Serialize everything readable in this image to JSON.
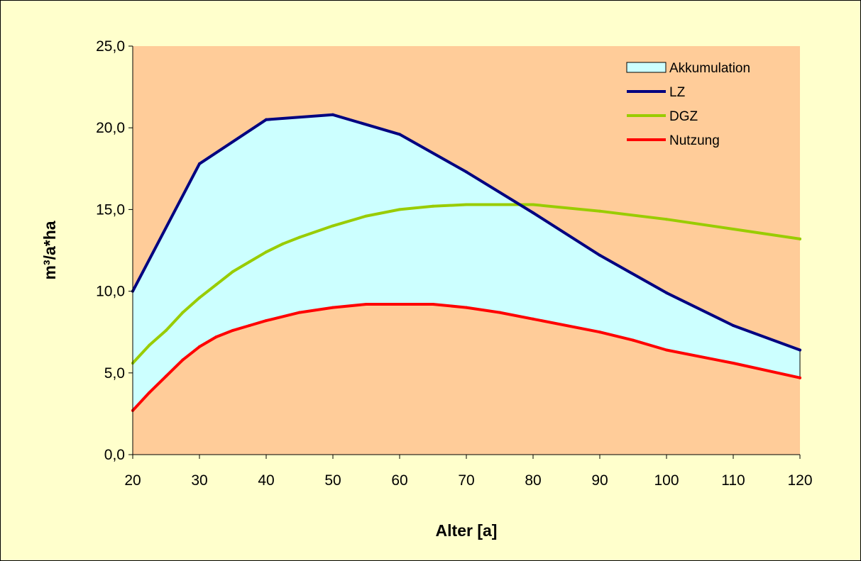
{
  "chart_data": {
    "type": "line",
    "title": "",
    "xlabel": "Alter [a]",
    "ylabel": "m³/a*ha",
    "xlim": [
      20,
      120
    ],
    "ylim": [
      0,
      25
    ],
    "x_ticks": [
      20,
      30,
      40,
      50,
      60,
      70,
      80,
      90,
      100,
      110,
      120
    ],
    "y_ticks": [
      "0,0",
      "5,0",
      "10,0",
      "15,0",
      "20,0",
      "25,0"
    ],
    "legend_position": "top-right",
    "grid": false,
    "plot_background": "#ffcc99",
    "chart_background": "#ffffcc",
    "area": {
      "name": "Akkumulation",
      "color": "#ccffff",
      "description_between": [
        "LZ",
        "Nutzung"
      ]
    },
    "series": [
      {
        "name": "LZ",
        "color": "#000080",
        "x": [
          20,
          30,
          40,
          50,
          60,
          70,
          80,
          90,
          100,
          110,
          120
        ],
        "y": [
          10.0,
          17.8,
          20.5,
          20.8,
          19.6,
          17.3,
          14.8,
          12.2,
          9.9,
          7.9,
          6.4
        ]
      },
      {
        "name": "DGZ",
        "color": "#99cc00",
        "x": [
          20,
          22.5,
          25,
          27.5,
          30,
          32.5,
          35,
          37.5,
          40,
          42.5,
          45,
          50,
          55,
          60,
          65,
          70,
          75,
          80,
          90,
          100,
          110,
          120
        ],
        "y": [
          5.6,
          6.7,
          7.6,
          8.7,
          9.6,
          10.4,
          11.2,
          11.8,
          12.4,
          12.9,
          13.3,
          14.0,
          14.6,
          15.0,
          15.2,
          15.3,
          15.3,
          15.3,
          14.9,
          14.4,
          13.8,
          13.2
        ]
      },
      {
        "name": "Nutzung",
        "color": "#ff0000",
        "x": [
          20,
          22.5,
          25,
          27.5,
          30,
          32.5,
          35,
          37.5,
          40,
          45,
          50,
          55,
          60,
          65,
          70,
          75,
          80,
          90,
          95,
          100,
          110,
          120
        ],
        "y": [
          2.7,
          3.8,
          4.8,
          5.8,
          6.6,
          7.2,
          7.6,
          7.9,
          8.2,
          8.7,
          9.0,
          9.2,
          9.2,
          9.2,
          9.0,
          8.7,
          8.3,
          7.5,
          7.0,
          6.4,
          5.6,
          4.7
        ]
      }
    ]
  }
}
